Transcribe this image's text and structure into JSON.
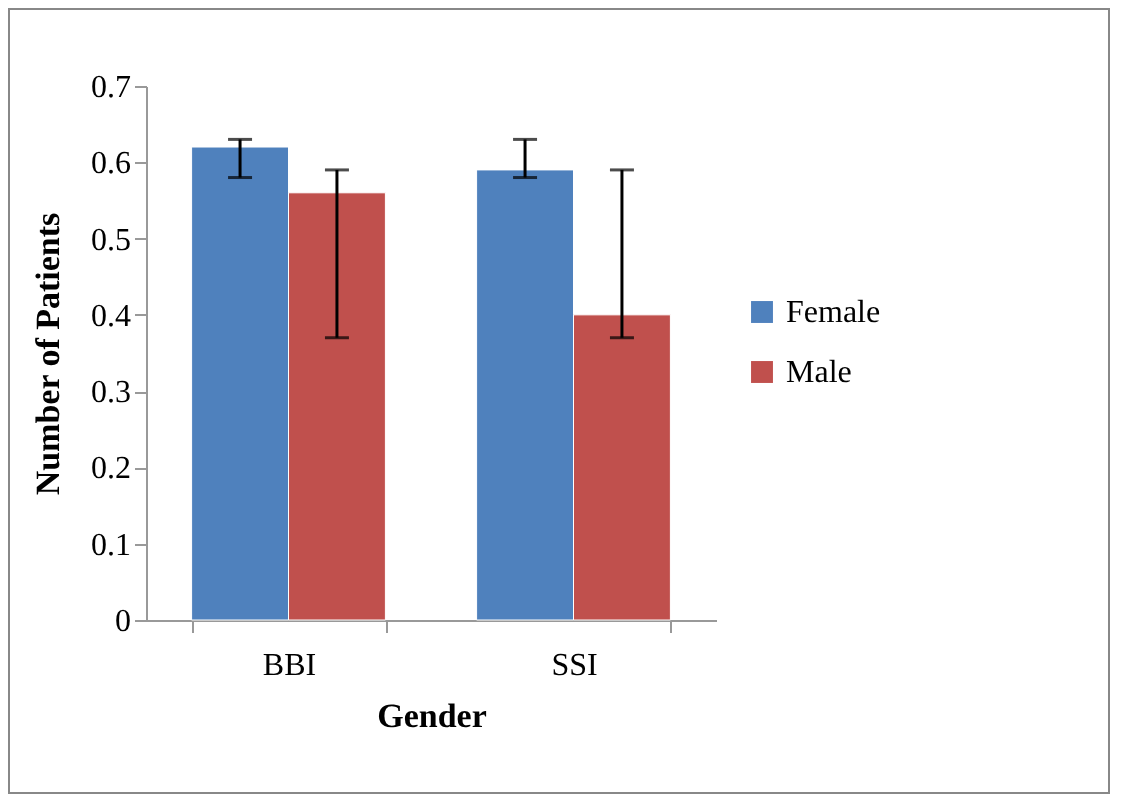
{
  "chart_data": {
    "type": "bar",
    "xlabel": "Gender",
    "ylabel": "Number of Patients",
    "categories": [
      "BBI",
      "SSI"
    ],
    "series": [
      {
        "name": "Female",
        "color": "#4f81bd",
        "values": [
          0.62,
          0.59
        ],
        "errors": [
          [
            0.58,
            0.63
          ],
          [
            0.58,
            0.63
          ]
        ]
      },
      {
        "name": "Male",
        "color": "#c0504d",
        "values": [
          0.56,
          0.4
        ],
        "errors": [
          [
            0.37,
            0.59
          ],
          [
            0.37,
            0.59
          ]
        ]
      }
    ],
    "ylim": [
      0,
      0.7
    ],
    "yticks": [
      0,
      0.1,
      0.2,
      0.3,
      0.4,
      0.5,
      0.6,
      0.7
    ],
    "grid": false,
    "legend": "right"
  }
}
